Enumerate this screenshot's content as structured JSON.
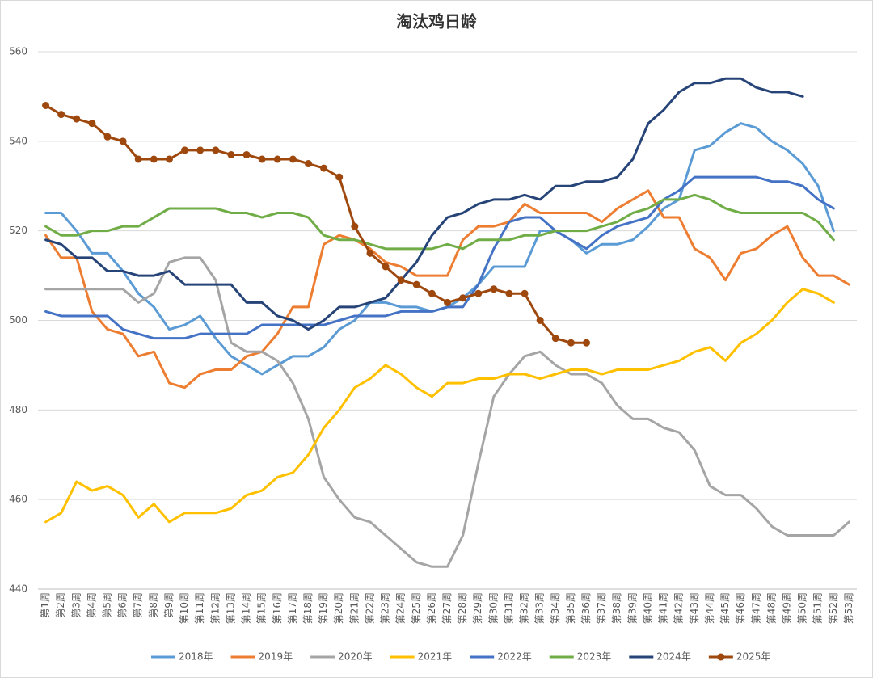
{
  "chart_data": {
    "type": "line",
    "title": "淘汰鸡日龄",
    "categories": [
      "第1周",
      "第2周",
      "第3周",
      "第4周",
      "第5周",
      "第6周",
      "第7周",
      "第8周",
      "第9周",
      "第10周",
      "第11周",
      "第12周",
      "第13周",
      "第14周",
      "第15周",
      "第16周",
      "第17周",
      "第18周",
      "第19周",
      "第20周",
      "第21周",
      "第22周",
      "第23周",
      "第24周",
      "第25周",
      "第26周",
      "第27周",
      "第28周",
      "第29周",
      "第30周",
      "第31周",
      "第32周",
      "第33周",
      "第34周",
      "第35周",
      "第36周",
      "第37周",
      "第38周",
      "第39周",
      "第40周",
      "第41周",
      "第42周",
      "第43周",
      "第44周",
      "第45周",
      "第46周",
      "第47周",
      "第48周",
      "第49周",
      "第50周",
      "第51周",
      "第52周",
      "第53周"
    ],
    "ylim": [
      440,
      560
    ],
    "yticks": [
      440,
      460,
      480,
      500,
      520,
      540,
      560
    ],
    "grid": true,
    "legend": "bottom",
    "series": [
      {
        "name": "2018年",
        "color": "#5b9bd5",
        "values": [
          524,
          524,
          520,
          515,
          515,
          511,
          506,
          503,
          498,
          499,
          501,
          496,
          492,
          490,
          488,
          490,
          492,
          492,
          494,
          498,
          500,
          504,
          504,
          503,
          503,
          502,
          503,
          505,
          508,
          512,
          512,
          512,
          520,
          520,
          518,
          515,
          517,
          517,
          518,
          521,
          525,
          527,
          538,
          539,
          542,
          544,
          543,
          540,
          538,
          535,
          530,
          520,
          null
        ]
      },
      {
        "name": "2019年",
        "color": "#ed7d31",
        "values": [
          519,
          514,
          514,
          502,
          498,
          497,
          492,
          493,
          486,
          485,
          488,
          489,
          489,
          492,
          493,
          497,
          503,
          503,
          517,
          519,
          518,
          516,
          513,
          512,
          510,
          510,
          510,
          518,
          521,
          521,
          522,
          526,
          524,
          524,
          524,
          524,
          522,
          525,
          527,
          529,
          523,
          523,
          516,
          514,
          509,
          515,
          516,
          519,
          521,
          514,
          510,
          510,
          508
        ]
      },
      {
        "name": "2020年",
        "color": "#a5a5a5",
        "values": [
          507,
          507,
          507,
          507,
          507,
          507,
          504,
          506,
          513,
          514,
          514,
          509,
          495,
          493,
          493,
          491,
          486,
          478,
          465,
          460,
          456,
          455,
          452,
          449,
          446,
          445,
          445,
          452,
          468,
          483,
          488,
          492,
          493,
          490,
          488,
          488,
          486,
          481,
          478,
          478,
          476,
          475,
          471,
          463,
          461,
          461,
          458,
          454,
          452,
          452,
          452,
          452,
          455
        ]
      },
      {
        "name": "2021年",
        "color": "#ffc000",
        "values": [
          455,
          457,
          464,
          462,
          463,
          461,
          456,
          459,
          455,
          457,
          457,
          457,
          458,
          461,
          462,
          465,
          466,
          470,
          476,
          480,
          485,
          487,
          490,
          488,
          485,
          483,
          486,
          486,
          487,
          487,
          488,
          488,
          487,
          488,
          489,
          489,
          488,
          489,
          489,
          489,
          490,
          491,
          493,
          494,
          491,
          495,
          497,
          500,
          504,
          507,
          506,
          504,
          null
        ]
      },
      {
        "name": "2022年",
        "color": "#4472c4",
        "values": [
          502,
          501,
          501,
          501,
          501,
          498,
          497,
          496,
          496,
          496,
          497,
          497,
          497,
          497,
          499,
          499,
          499,
          499,
          499,
          500,
          501,
          501,
          501,
          502,
          502,
          502,
          503,
          503,
          508,
          516,
          522,
          523,
          523,
          520,
          518,
          516,
          519,
          521,
          522,
          523,
          527,
          529,
          532,
          532,
          532,
          532,
          532,
          531,
          531,
          530,
          527,
          525,
          null
        ]
      },
      {
        "name": "2023年",
        "color": "#70ad47",
        "values": [
          521,
          519,
          519,
          520,
          520,
          521,
          521,
          523,
          525,
          525,
          525,
          525,
          524,
          524,
          523,
          524,
          524,
          523,
          519,
          518,
          518,
          517,
          516,
          516,
          516,
          516,
          517,
          516,
          518,
          518,
          518,
          519,
          519,
          520,
          520,
          520,
          521,
          522,
          524,
          525,
          527,
          527,
          528,
          527,
          525,
          524,
          524,
          524,
          524,
          524,
          522,
          518,
          null
        ]
      },
      {
        "name": "2024年",
        "color": "#264478",
        "values": [
          518,
          517,
          514,
          514,
          511,
          511,
          510,
          510,
          511,
          508,
          508,
          508,
          508,
          504,
          504,
          501,
          500,
          498,
          500,
          503,
          503,
          504,
          505,
          509,
          513,
          519,
          523,
          524,
          526,
          527,
          527,
          528,
          527,
          530,
          530,
          531,
          531,
          532,
          536,
          544,
          547,
          551,
          553,
          553,
          554,
          554,
          552,
          551,
          551,
          550,
          null,
          null,
          null
        ]
      },
      {
        "name": "2025年",
        "color": "#9e480e",
        "marker": "circle",
        "values": [
          548,
          546,
          545,
          544,
          541,
          540,
          536,
          536,
          536,
          538,
          538,
          538,
          537,
          537,
          536,
          536,
          536,
          535,
          534,
          532,
          521,
          515,
          512,
          509,
          508,
          506,
          504,
          505,
          506,
          507,
          506,
          506,
          500,
          496,
          495,
          495,
          null,
          null,
          null,
          null,
          null,
          null,
          null,
          null,
          null,
          null,
          null,
          null,
          null,
          null,
          null,
          null,
          null
        ]
      }
    ]
  }
}
